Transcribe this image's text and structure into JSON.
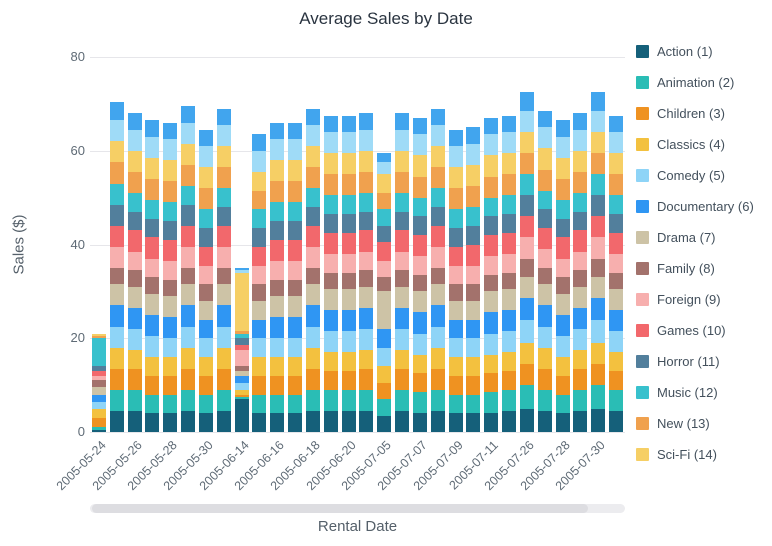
{
  "chart_data": {
    "type": "bar",
    "stacked": true,
    "title": "Average Sales by Date",
    "xlabel": "Rental Date",
    "ylabel": "Sales ($)",
    "ylim": [
      0,
      80
    ],
    "y_ticks": [
      0,
      20,
      40,
      60,
      80
    ],
    "grid": true,
    "legend_position": "right",
    "x_tick_every": 2,
    "categories": [
      "2005-05-24",
      "2005-05-25",
      "2005-05-26",
      "2005-05-27",
      "2005-05-28",
      "2005-05-29",
      "2005-05-30",
      "2005-05-31",
      "2005-06-14",
      "2005-06-15",
      "2005-06-16",
      "2005-06-17",
      "2005-06-18",
      "2005-06-19",
      "2005-06-20",
      "2005-06-21",
      "2005-07-05",
      "2005-07-06",
      "2005-07-07",
      "2005-07-08",
      "2005-07-09",
      "2005-07-10",
      "2005-07-11",
      "2005-07-12",
      "2005-07-26",
      "2005-07-27",
      "2005-07-28",
      "2005-07-29",
      "2005-07-30",
      "2005-07-31"
    ],
    "series": [
      {
        "label": "Action (1)",
        "color": "#15607a",
        "in_legend": true,
        "values": [
          0.5,
          4.5,
          4.5,
          4,
          4,
          4.5,
          4,
          4.5,
          7,
          4,
          4,
          4,
          4.5,
          4.5,
          4.5,
          4.5,
          3.5,
          4.5,
          4,
          4.5,
          4,
          4,
          4,
          4.5,
          5,
          4.5,
          4,
          4.5,
          5,
          4.5
        ]
      },
      {
        "label": "Animation (2)",
        "color": "#2abdb5",
        "in_legend": true,
        "values": [
          0.5,
          4.5,
          4.5,
          4,
          4,
          4.5,
          4,
          4.5,
          0.5,
          4,
          4,
          4,
          4.5,
          4.5,
          4.5,
          4.5,
          3.5,
          4.5,
          4.5,
          4.5,
          4,
          4,
          4.5,
          4.5,
          5,
          4.5,
          4,
          4.5,
          5,
          4.5
        ]
      },
      {
        "label": "Children (3)",
        "color": "#ef9221",
        "in_legend": true,
        "values": [
          2,
          4.5,
          4.5,
          4,
          4,
          4.5,
          4,
          4.5,
          0.5,
          4,
          4,
          4,
          4.5,
          4,
          4,
          4.5,
          3.5,
          4.5,
          4,
          4.5,
          4,
          4,
          4,
          4,
          4.5,
          4.5,
          4,
          4.5,
          4.5,
          4
        ]
      },
      {
        "label": "Classics (4)",
        "color": "#f3c13f",
        "in_legend": true,
        "values": [
          2,
          4.5,
          4,
          4,
          4,
          4.5,
          4,
          4.5,
          1,
          4,
          4,
          4,
          4.5,
          4,
          4,
          4,
          3.5,
          4,
          4,
          4.5,
          4,
          4,
          4,
          4,
          4.5,
          4.5,
          4,
          4,
          4.5,
          4
        ]
      },
      {
        "label": "Comedy (5)",
        "color": "#8ed4f7",
        "in_legend": true,
        "values": [
          1.5,
          4.5,
          4.5,
          4.5,
          4,
          4.5,
          4,
          4.5,
          1.5,
          4,
          4,
          4,
          4.5,
          4.5,
          4.5,
          4.5,
          4,
          4.5,
          4.5,
          4.5,
          4,
          4,
          4.5,
          4.5,
          5,
          4.5,
          4.5,
          4.5,
          5,
          4.5
        ]
      },
      {
        "label": "Documentary (6)",
        "color": "#2f96f3",
        "in_legend": true,
        "values": [
          1.5,
          4.5,
          4.5,
          4.5,
          4.5,
          4.5,
          4,
          4.5,
          1.5,
          4,
          4.5,
          4.5,
          4.5,
          4.5,
          4.5,
          4.5,
          4,
          4.5,
          4.5,
          4.5,
          4,
          4,
          4.5,
          4.5,
          4.5,
          4.5,
          4.5,
          4.5,
          4.5,
          4.5
        ]
      },
      {
        "label": "Drama (7)",
        "color": "#cdc3a6",
        "in_legend": true,
        "values": [
          1.5,
          4.5,
          4.5,
          4.5,
          4.5,
          4.5,
          4,
          4.5,
          1,
          4,
          4.5,
          4.5,
          4.5,
          4.5,
          4.5,
          4.5,
          8,
          4.5,
          4.5,
          4.5,
          4,
          4,
          4.5,
          4.5,
          4.5,
          4.5,
          4.5,
          4.5,
          4.5,
          4.5
        ]
      },
      {
        "label": "Family (8)",
        "color": "#a3726c",
        "in_legend": true,
        "values": [
          1.5,
          3.5,
          3.5,
          3.5,
          3.5,
          3.5,
          3.5,
          3.5,
          1,
          3.5,
          3.5,
          3.5,
          3.5,
          3.5,
          3.5,
          3.5,
          3,
          3.5,
          3.5,
          3.5,
          3.5,
          3.5,
          3.5,
          3.5,
          4,
          3.5,
          3.5,
          3.5,
          4,
          3.5
        ]
      },
      {
        "label": "Foreign (9)",
        "color": "#f7afae",
        "in_legend": true,
        "values": [
          1,
          4.5,
          4,
          4,
          4,
          4.5,
          4,
          4.5,
          3.5,
          4,
          4,
          4,
          4.5,
          4,
          4,
          4,
          3.5,
          4,
          4,
          4.5,
          4,
          4,
          4,
          4,
          4.5,
          4,
          4,
          4,
          4.5,
          4
        ]
      },
      {
        "label": "Games (10)",
        "color": "#f2686c",
        "in_legend": true,
        "values": [
          1,
          4.5,
          4.5,
          4.5,
          4.5,
          4.5,
          4,
          4.5,
          1,
          4,
          4.5,
          4.5,
          4.5,
          4.5,
          4.5,
          4.5,
          4,
          4.5,
          4.5,
          4.5,
          4,
          4.5,
          4.5,
          4.5,
          4.5,
          4.5,
          4.5,
          4.5,
          4.5,
          4.5
        ]
      },
      {
        "label": "Horror (11)",
        "color": "#527f9c",
        "in_legend": true,
        "values": [
          1,
          4.5,
          4,
          4,
          4,
          4.5,
          4,
          4,
          1.5,
          4,
          4,
          4,
          4,
          4,
          4,
          4,
          3.5,
          4,
          4,
          4,
          4,
          4,
          4,
          4,
          4.5,
          4,
          4,
          4,
          4.5,
          4
        ]
      },
      {
        "label": "Music (12)",
        "color": "#38c1cd",
        "in_legend": true,
        "values": [
          6,
          4.5,
          4,
          4,
          4,
          4,
          4,
          4,
          1,
          4,
          4,
          4,
          4,
          4,
          4,
          4,
          3.5,
          4,
          4,
          4,
          4,
          4,
          4,
          4,
          4.5,
          4,
          4,
          4,
          4.5,
          4
        ]
      },
      {
        "label": "New (13)",
        "color": "#f0a14e",
        "in_legend": true,
        "values": [
          0.5,
          4.5,
          4.5,
          4.5,
          4.5,
          4.5,
          4.5,
          4.5,
          0.5,
          4,
          4.5,
          4.5,
          4.5,
          4.5,
          4.5,
          4.5,
          3.5,
          4.5,
          4.5,
          4.5,
          4.5,
          4.5,
          4.5,
          4.5,
          4.5,
          4.5,
          4.5,
          4.5,
          4.5,
          4.5
        ]
      },
      {
        "label": "Sci-Fi (14)",
        "color": "#f6cf65",
        "in_legend": true,
        "values": [
          0.5,
          4.5,
          4.5,
          4.5,
          4.5,
          4.5,
          4.5,
          4.5,
          12.5,
          4,
          4.5,
          4.5,
          4.5,
          4.5,
          4.5,
          4.5,
          4,
          4.5,
          4.5,
          4.5,
          4.5,
          4.5,
          4.5,
          4.5,
          4.5,
          4.5,
          4.5,
          4.5,
          4.5,
          4.5
        ]
      },
      {
        "label": "",
        "color": "#9fdbf7",
        "in_legend": false,
        "values": [
          0,
          4.5,
          4.5,
          4.5,
          4.5,
          4.5,
          4.5,
          4.5,
          0.5,
          4.5,
          4.5,
          4.5,
          4.5,
          4.5,
          4.5,
          4.5,
          2.5,
          4.5,
          4.5,
          4.5,
          4.5,
          4.5,
          4.5,
          4.5,
          4.5,
          4.5,
          4.5,
          4.5,
          4.5,
          4.5
        ]
      },
      {
        "label": "",
        "color": "#41a5ee",
        "in_legend": false,
        "values": [
          0,
          4,
          3.5,
          3.5,
          3.5,
          3.5,
          3.5,
          3.5,
          0.5,
          3.5,
          3.5,
          3.5,
          3.5,
          3.5,
          3.5,
          3.5,
          2,
          3.5,
          3.5,
          3.5,
          3.5,
          3.5,
          3.5,
          3.5,
          4,
          3.5,
          3.5,
          3.5,
          4,
          3.5
        ]
      }
    ]
  }
}
